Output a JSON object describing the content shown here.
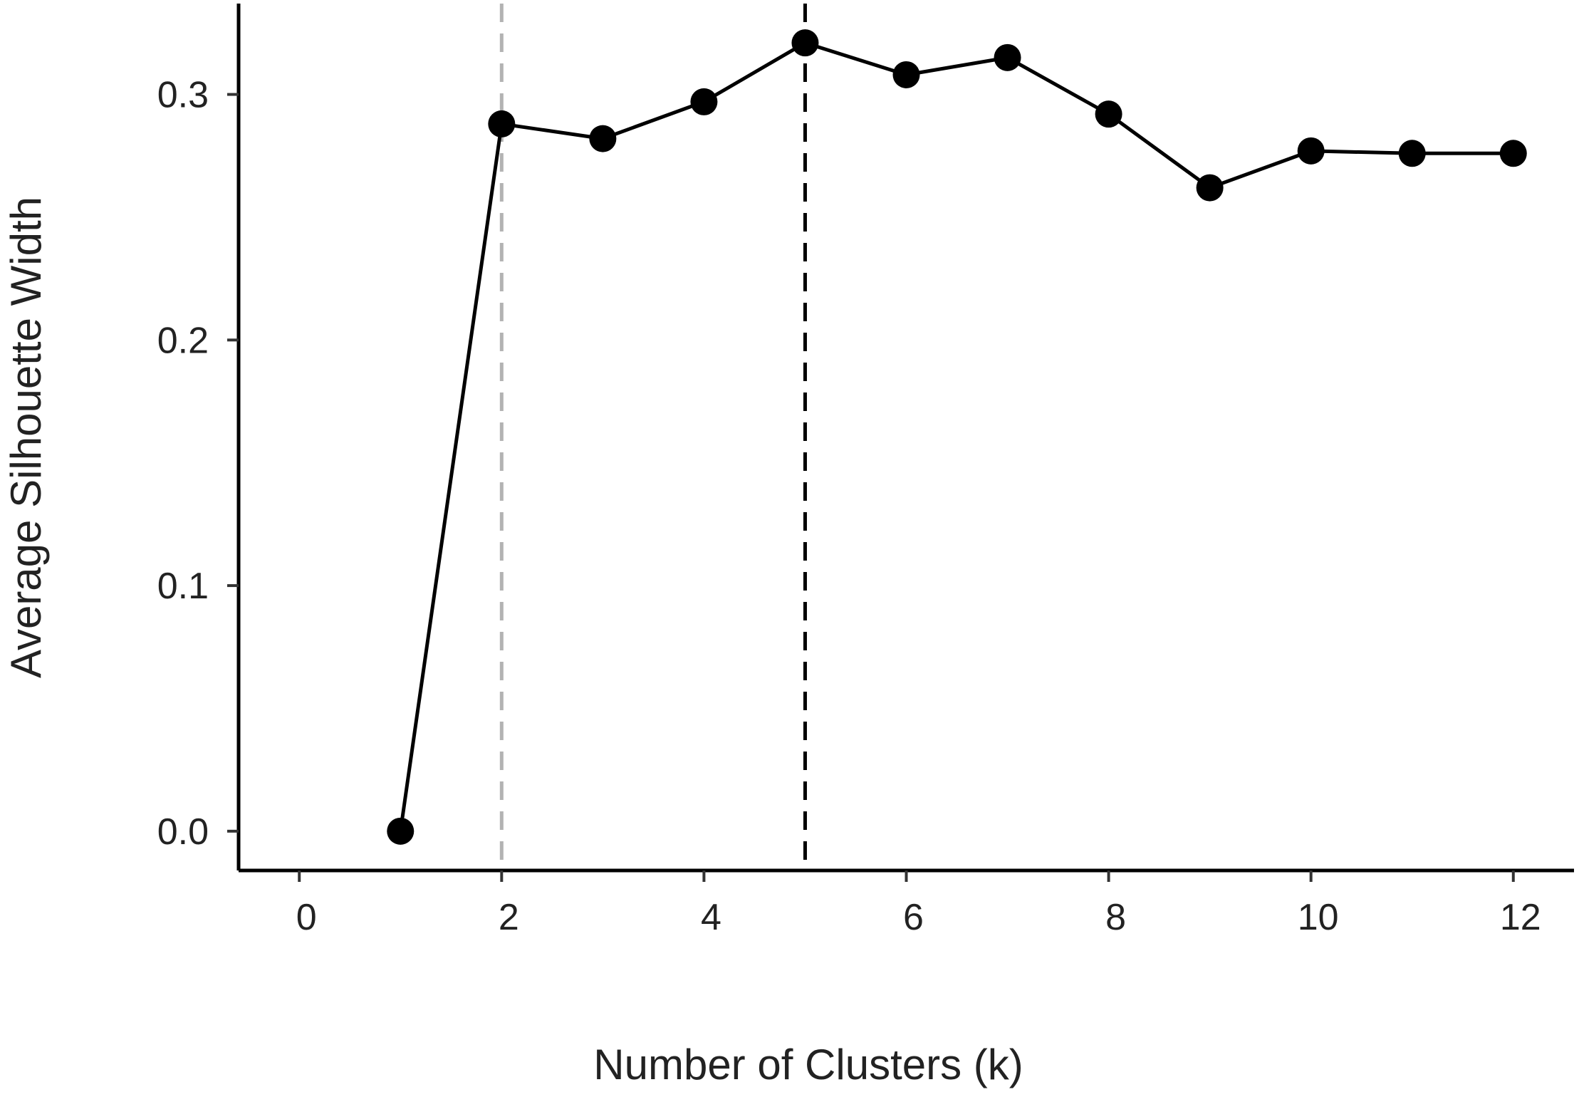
{
  "chart_data": {
    "type": "line",
    "title": "",
    "xlabel": "Number of Clusters (k)",
    "ylabel": "Average Silhouette Width",
    "xlim": [
      -0.6,
      12.6
    ],
    "ylim": [
      -0.016,
      0.337
    ],
    "x_ticks": [
      0,
      2,
      4,
      6,
      8,
      10,
      12
    ],
    "x_tick_labels": [
      "0",
      "2",
      "4",
      "6",
      "8",
      "10",
      "12"
    ],
    "y_ticks": [
      0.0,
      0.1,
      0.2,
      0.3
    ],
    "y_tick_labels": [
      "0.0",
      "0.1",
      "0.2",
      "0.3"
    ],
    "grid": false,
    "legend": "none",
    "series": [
      {
        "x": [
          1,
          2,
          3,
          4,
          5,
          6,
          7,
          8,
          9,
          10,
          11,
          12
        ],
        "y": [
          0.0,
          0.288,
          0.282,
          0.297,
          0.321,
          0.308,
          0.315,
          0.292,
          0.262,
          0.277,
          0.276,
          0.276
        ],
        "color": "#000000"
      }
    ],
    "reference_lines": [
      {
        "x": 2,
        "style": "dashed",
        "color": "#b3b3b3"
      },
      {
        "x": 5,
        "style": "dashed",
        "color": "#000000"
      }
    ]
  }
}
